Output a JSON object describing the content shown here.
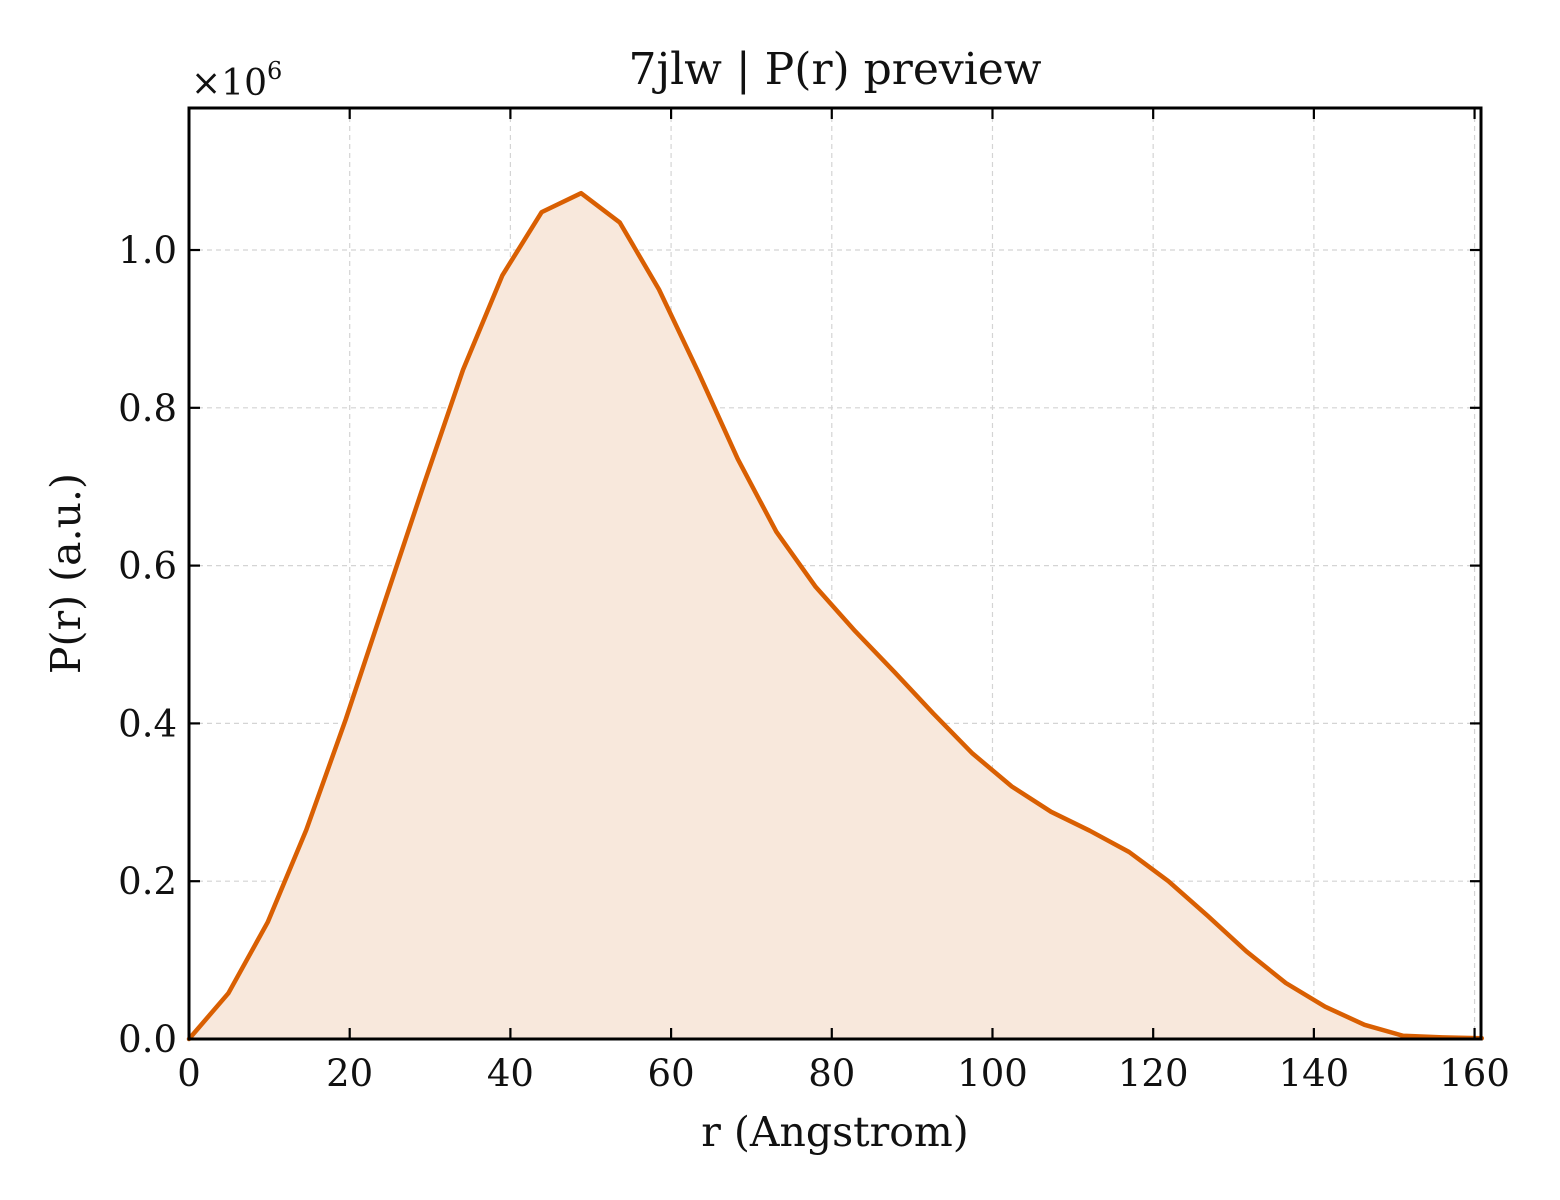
{
  "chart_data": {
    "type": "area",
    "title": "7jlw | P(r) preview",
    "xlabel": "r (Angstrom)",
    "ylabel": "P(r) (a.u.)",
    "y_offset_text": {
      "base": "×10",
      "exponent": "6"
    },
    "xlim": [
      0,
      160.8
    ],
    "ylim": [
      0,
      1.18
    ],
    "y_scale_factor": 1000000,
    "x_ticks": [
      0,
      20,
      40,
      60,
      80,
      100,
      120,
      140,
      160
    ],
    "x_tick_labels": [
      "0",
      "20",
      "40",
      "60",
      "80",
      "100",
      "120",
      "140",
      "160"
    ],
    "y_ticks": [
      0,
      0.2,
      0.4,
      0.6,
      0.8,
      1.0
    ],
    "y_tick_labels": [
      "0.0",
      "0.2",
      "0.4",
      "0.6",
      "0.8",
      "1.0"
    ],
    "grid": true,
    "series": [
      {
        "line_color": "#d95f02",
        "fill_color": "#f8e8dc",
        "x": [
          0,
          4.9,
          9.8,
          14.6,
          19.5,
          24.4,
          29.3,
          34.1,
          39.0,
          43.9,
          48.8,
          53.6,
          58.5,
          63.4,
          68.3,
          73.1,
          78.0,
          82.9,
          87.8,
          92.6,
          97.5,
          102.4,
          107.3,
          112.1,
          117.0,
          121.9,
          126.8,
          131.6,
          136.5,
          141.4,
          146.3,
          151.1,
          156.0,
          160.9
        ],
        "y": [
          0.0,
          0.058,
          0.148,
          0.265,
          0.405,
          0.555,
          0.705,
          0.848,
          0.968,
          1.048,
          1.072,
          1.035,
          0.95,
          0.845,
          0.735,
          0.643,
          0.573,
          0.517,
          0.465,
          0.413,
          0.362,
          0.32,
          0.288,
          0.264,
          0.237,
          0.2,
          0.156,
          0.111,
          0.071,
          0.041,
          0.018,
          0.004,
          0.002,
          0.001
        ]
      }
    ]
  }
}
